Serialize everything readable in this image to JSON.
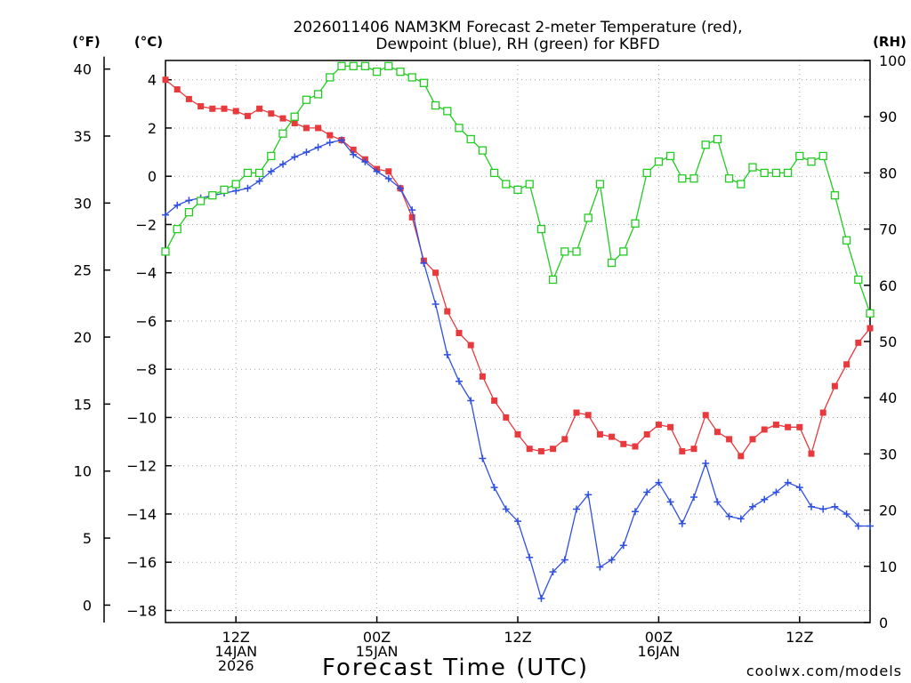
{
  "title_line1": "2026011406 NAM3KM Forecast 2-meter Temperature (red),",
  "title_line2": "Dewpoint (blue), RH (green) for KBFD",
  "unit_f": "(°F)",
  "unit_c": "(°C)",
  "unit_rh": "(RH)",
  "xlabel": "Forecast Time (UTC)",
  "credit": "coolwx.com/models",
  "colors": {
    "temperature": "#e8393c",
    "dewpoint": "#2f4fe0",
    "rh": "#22cc22",
    "credit": "#e8393c",
    "grid": "#a0a0a0"
  },
  "x_ticks": [
    {
      "hour": 6,
      "lines": [
        "12Z",
        "14JAN",
        "2026"
      ]
    },
    {
      "hour": 18,
      "lines": [
        "00Z",
        "15JAN"
      ]
    },
    {
      "hour": 30,
      "lines": [
        "12Z"
      ]
    },
    {
      "hour": 42,
      "lines": [
        "00Z",
        "16JAN"
      ]
    },
    {
      "hour": 54,
      "lines": [
        "12Z"
      ]
    }
  ],
  "chart_data": {
    "type": "line",
    "title": "2026011406 NAM3KM Forecast 2-meter Temperature (red), Dewpoint (blue), RH (green) for KBFD",
    "xlabel": "Forecast Time (UTC)",
    "x_unit": "forecast hour",
    "xlim": [
      0,
      60
    ],
    "x": [
      0,
      1,
      2,
      3,
      4,
      5,
      6,
      7,
      8,
      9,
      10,
      11,
      12,
      13,
      14,
      15,
      16,
      17,
      18,
      19,
      20,
      21,
      22,
      23,
      24,
      25,
      26,
      27,
      28,
      29,
      30,
      31,
      32,
      33,
      34,
      35,
      36,
      37,
      38,
      39,
      40,
      41,
      42,
      43,
      44,
      45,
      46,
      47,
      48,
      49,
      50,
      51,
      52,
      53,
      54,
      55,
      56,
      57,
      58,
      59,
      60
    ],
    "ylim_c": [
      -18.5,
      4.8
    ],
    "yticks_c": [
      4,
      2,
      0,
      -2,
      -4,
      -6,
      -8,
      -10,
      -12,
      -14,
      -16,
      -18
    ],
    "yticks_f": [
      40,
      35,
      30,
      25,
      20,
      15,
      10,
      5,
      0
    ],
    "ylim_rh": [
      0,
      100
    ],
    "yticks_rh": [
      100,
      90,
      80,
      70,
      60,
      50,
      40,
      30,
      20,
      10,
      0
    ],
    "series": [
      {
        "name": "Temperature",
        "axis": "celsius",
        "marker": "filled-square",
        "values": [
          4.0,
          3.6,
          3.2,
          2.9,
          2.8,
          2.8,
          2.7,
          2.5,
          2.8,
          2.6,
          2.4,
          2.2,
          2.0,
          2.0,
          1.7,
          1.5,
          1.1,
          0.7,
          0.3,
          0.2,
          -0.5,
          -1.7,
          -3.5,
          -4.0,
          -5.6,
          -6.5,
          -7.0,
          -8.3,
          -9.3,
          -10.0,
          -10.7,
          -11.3,
          -11.4,
          -11.3,
          -10.9,
          -9.8,
          -9.9,
          -10.7,
          -10.8,
          -11.1,
          -11.2,
          -10.7,
          -10.3,
          -10.4,
          -11.4,
          -11.3,
          -9.9,
          -10.6,
          -10.9,
          -11.6,
          -10.9,
          -10.5,
          -10.3,
          -10.4,
          -10.4,
          -11.5,
          -9.8,
          -8.7,
          -7.8,
          -6.9,
          -6.3
        ]
      },
      {
        "name": "Dewpoint",
        "axis": "celsius",
        "marker": "plus",
        "values": [
          -1.6,
          -1.2,
          -1.0,
          -0.9,
          -0.8,
          -0.7,
          -0.6,
          -0.5,
          -0.2,
          0.2,
          0.5,
          0.8,
          1.0,
          1.2,
          1.4,
          1.5,
          0.9,
          0.6,
          0.2,
          -0.1,
          -0.5,
          -1.4,
          -3.6,
          -5.3,
          -7.4,
          -8.5,
          -9.3,
          -11.7,
          -12.9,
          -13.8,
          -14.3,
          -15.8,
          -17.5,
          -16.4,
          -15.9,
          -13.8,
          -13.2,
          -16.2,
          -15.9,
          -15.3,
          -13.9,
          -13.1,
          -12.7,
          -13.5,
          -14.4,
          -13.3,
          -11.9,
          -13.5,
          -14.1,
          -14.2,
          -13.7,
          -13.4,
          -13.1,
          -12.7,
          -12.9,
          -13.7,
          -13.8,
          -13.7,
          -14.0,
          -14.5,
          -14.5
        ]
      },
      {
        "name": "RH",
        "axis": "rh",
        "marker": "open-square",
        "values": [
          66,
          70,
          73,
          75,
          76,
          77,
          78,
          80,
          80,
          83,
          87,
          90,
          93,
          94,
          97,
          99,
          99,
          99,
          98,
          99,
          98,
          97,
          96,
          92,
          91,
          88,
          86,
          84,
          80,
          78,
          77,
          78,
          70,
          61,
          66,
          66,
          72,
          78,
          64,
          66,
          71,
          80,
          82,
          83,
          79,
          79,
          85,
          86,
          79,
          78,
          81,
          80,
          80,
          80,
          83,
          82,
          83,
          76,
          68,
          61,
          55
        ]
      }
    ]
  }
}
